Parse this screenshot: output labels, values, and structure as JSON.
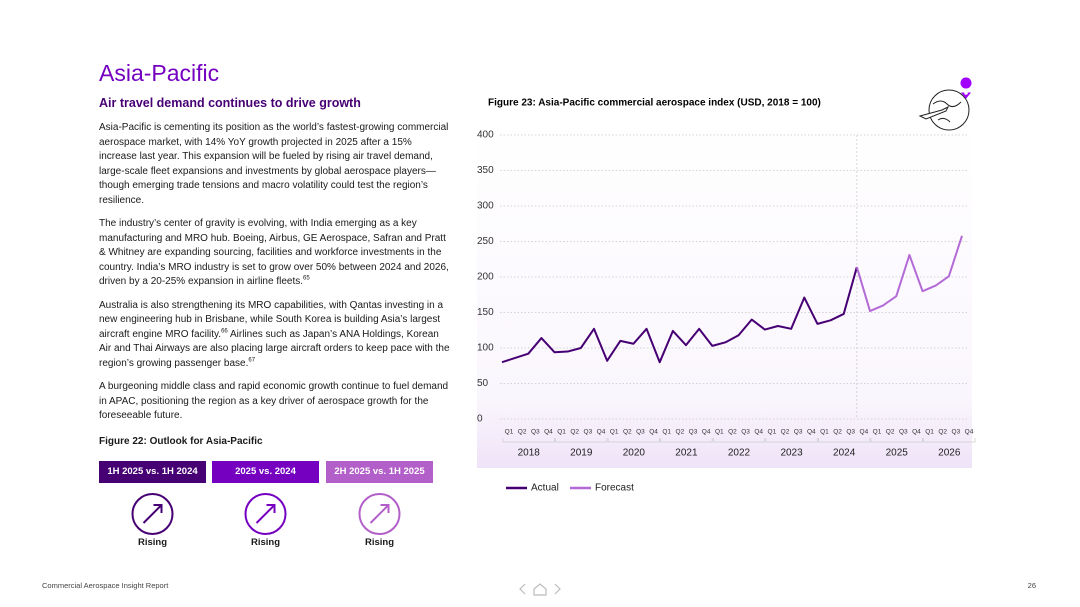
{
  "page": {
    "heading": "Asia-Pacific",
    "subheading": "Air travel demand continues to drive growth",
    "paragraphs": [
      [
        {
          "text": "Asia-Pacific is cementing its position as the world’s fastest-growing commercial aerospace market, with 14% YoY growth projected in 2025 after a 15% increase last year. This expansion will be fueled by rising air travel demand, large-scale fleet expansions and investments by global aerospace players—though emerging trade tensions and macro volatility could test the region’s resilience."
        }
      ],
      [
        {
          "text": "The industry’s center of gravity is evolving, with India emerging as a key manufacturing and MRO hub. Boeing, Airbus, GE Aerospace, Safran and Pratt & Whitney are expanding sourcing, facilities and workforce investments in the country. India’s MRO industry is set to grow over 50% between 2024 and 2026, driven by a 20-25% expansion in airline fleets."
        },
        {
          "sup": "65"
        }
      ],
      [
        {
          "text": "Australia is also strengthening its MRO capabilities, with Qantas investing in a new engineering hub in Brisbane, while South Korea is building Asia’s largest aircraft engine MRO facility."
        },
        {
          "sup": "66"
        },
        {
          "text": " Airlines such as Japan’s ANA Holdings, Korean Air and Thai Airways are also placing large aircraft orders to keep pace with the region’s growing passenger base."
        },
        {
          "sup": "67"
        }
      ],
      [
        {
          "text": "A burgeoning middle class and rapid economic growth continue to fuel demand in APAC, positioning the region as a key driver of aerospace growth for the foreseeable future."
        }
      ]
    ],
    "outlook": {
      "title": "Figure 22: Outlook for Asia-Pacific",
      "items": [
        {
          "label": "1H 2025 vs. 1H 2024",
          "status": "Rising",
          "color": "#460073"
        },
        {
          "label": "2025 vs. 2024",
          "status": "Rising",
          "color": "#7500c0"
        },
        {
          "label": "2H 2025 vs. 1H 2025",
          "status": "Rising",
          "color": "#b35fc9"
        }
      ]
    },
    "footer": {
      "report": "Commercial Aerospace Insight Report",
      "page": "26"
    }
  },
  "chart_data": {
    "type": "line",
    "title": "Figure 23: Asia-Pacific commercial aerospace index (USD, 2018 = 100)",
    "categories": [
      "Q1",
      "Q2",
      "Q3",
      "Q4",
      "Q1",
      "Q2",
      "Q3",
      "Q4",
      "Q1",
      "Q2",
      "Q3",
      "Q4",
      "Q1",
      "Q2",
      "Q3",
      "Q4",
      "Q1",
      "Q2",
      "Q3",
      "Q4",
      "Q1",
      "Q2",
      "Q3",
      "Q4",
      "Q1",
      "Q2",
      "Q3",
      "Q4",
      "Q1",
      "Q2",
      "Q3",
      "Q4",
      "Q1",
      "Q2",
      "Q3",
      "Q4"
    ],
    "years": [
      "2018",
      "2019",
      "2020",
      "2021",
      "2022",
      "2023",
      "2024",
      "2025",
      "2026"
    ],
    "series": [
      {
        "name": "Actual",
        "color": "#460073",
        "values": [
          80,
          86,
          92,
          114,
          94,
          95,
          100,
          127,
          82,
          110,
          106,
          127,
          80,
          124,
          104,
          127,
          103,
          108,
          118,
          140,
          126,
          131,
          127,
          171,
          134,
          139,
          148,
          214,
          null,
          null,
          null,
          null,
          null,
          null,
          null,
          null
        ]
      },
      {
        "name": "Forecast",
        "color": "#b36ad6",
        "values": [
          null,
          null,
          null,
          null,
          null,
          null,
          null,
          null,
          null,
          null,
          null,
          null,
          null,
          null,
          null,
          null,
          null,
          null,
          null,
          null,
          null,
          null,
          null,
          null,
          null,
          null,
          null,
          214,
          152,
          160,
          173,
          231,
          180,
          188,
          201,
          258
        ]
      }
    ],
    "ylim": [
      0,
      400
    ],
    "yticks": [
      0,
      50,
      100,
      150,
      200,
      250,
      300,
      350,
      400
    ],
    "grid": true
  }
}
